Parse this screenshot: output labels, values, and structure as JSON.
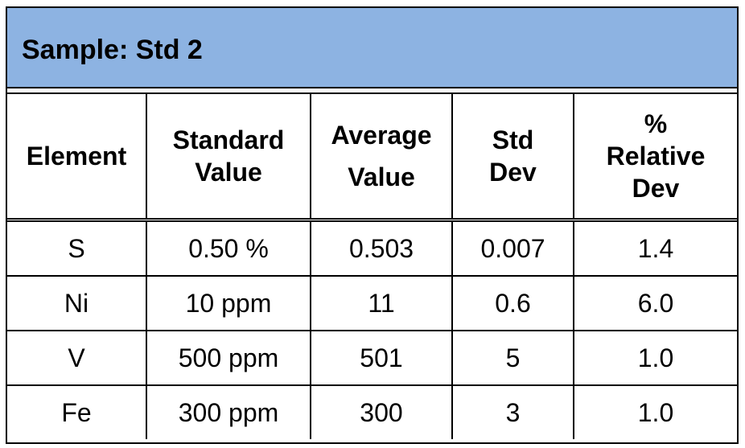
{
  "title": "Sample: Std 2",
  "headers": [
    [
      "Element"
    ],
    [
      "Standard",
      "Value"
    ],
    [
      "Average",
      "Value"
    ],
    [
      "Std",
      "Dev"
    ],
    [
      "%",
      "Relative",
      "Dev"
    ]
  ],
  "rows": [
    [
      "S",
      "0.50 %",
      "0.503",
      "0.007",
      "1.4"
    ],
    [
      "Ni",
      "10 ppm",
      "11",
      "0.6",
      "6.0"
    ],
    [
      "V",
      "500 ppm",
      "501",
      "5",
      "1.0"
    ],
    [
      "Fe",
      "300 ppm",
      "300",
      "3",
      "1.0"
    ]
  ],
  "colors": {
    "title_background": "#8db3e2",
    "border": "#000000",
    "text": "#000000"
  }
}
